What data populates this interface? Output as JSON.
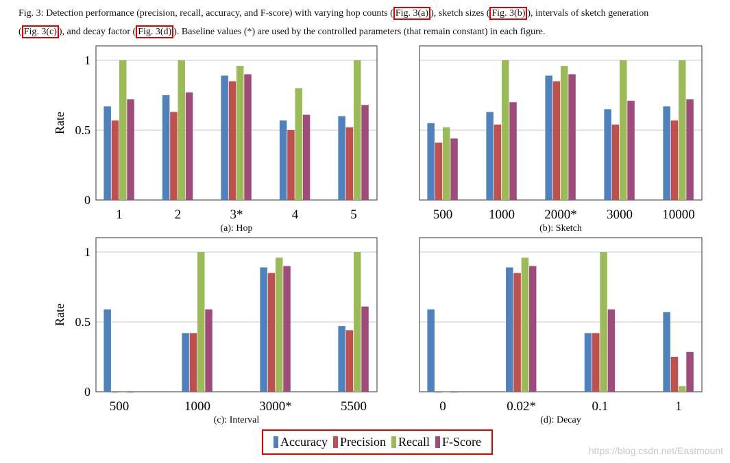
{
  "caption": {
    "l1a": "Fig. 3: Detection performance (precision, recall, accuracy, and F-score) with varying hop counts (",
    "ref_a": "Fig. 3(a)",
    "l1b": "), sketch sizes (",
    "ref_b": "Fig. 3(b)",
    "l1c": "), intervals of sketch generation",
    "l2a": "(",
    "ref_c": "Fig. 3(c)",
    "l2b": "), and decay factor (",
    "ref_d": "Fig. 3(d)",
    "l2c": "). Baseline values (*) are used by the controlled parameters (that remain constant) in each figure."
  },
  "legend": {
    "items": [
      {
        "label": "Accuracy",
        "color": "#4f81bd"
      },
      {
        "label": "Precision",
        "color": "#c0504d"
      },
      {
        "label": "Recall",
        "color": "#9bbb59"
      },
      {
        "label": "F-Score",
        "color": "#9f4c7c"
      }
    ]
  },
  "watermark": "https://blog.csdn.net/Eastmount",
  "chart_data": [
    {
      "type": "bar",
      "title": "(a): Hop",
      "ylabel": "Rate",
      "ylim": [
        0,
        1
      ],
      "yticks": [
        "0",
        "0.5",
        "1"
      ],
      "categories": [
        "1",
        "2",
        "3*",
        "4",
        "5"
      ],
      "series": [
        {
          "name": "Accuracy",
          "values": [
            0.67,
            0.75,
            0.89,
            0.57,
            0.6
          ]
        },
        {
          "name": "Precision",
          "values": [
            0.57,
            0.63,
            0.85,
            0.5,
            0.52
          ]
        },
        {
          "name": "Recall",
          "values": [
            1.0,
            1.0,
            0.96,
            0.8,
            1.0
          ]
        },
        {
          "name": "F-Score",
          "values": [
            0.72,
            0.77,
            0.9,
            0.61,
            0.68
          ]
        }
      ]
    },
    {
      "type": "bar",
      "title": "(b): Sketch",
      "ylabel": "",
      "ylim": [
        0,
        1
      ],
      "yticks": [],
      "categories": [
        "500",
        "1000",
        "2000*",
        "3000",
        "10000"
      ],
      "series": [
        {
          "name": "Accuracy",
          "values": [
            0.55,
            0.63,
            0.89,
            0.65,
            0.67
          ]
        },
        {
          "name": "Precision",
          "values": [
            0.41,
            0.54,
            0.85,
            0.54,
            0.57
          ]
        },
        {
          "name": "Recall",
          "values": [
            0.52,
            1.0,
            0.96,
            1.0,
            1.0
          ]
        },
        {
          "name": "F-Score",
          "values": [
            0.44,
            0.7,
            0.9,
            0.71,
            0.72
          ]
        }
      ]
    },
    {
      "type": "bar",
      "title": "(c): Interval",
      "ylabel": "Rate",
      "ylim": [
        0,
        1
      ],
      "yticks": [
        "0",
        "0.5",
        "1"
      ],
      "categories": [
        "500",
        "1000",
        "3000*",
        "5500"
      ],
      "series": [
        {
          "name": "Accuracy",
          "values": [
            0.59,
            0.42,
            0.89,
            0.47
          ]
        },
        {
          "name": "Precision",
          "values": [
            0.0,
            0.42,
            0.85,
            0.44
          ]
        },
        {
          "name": "Recall",
          "values": [
            0.0,
            1.0,
            0.96,
            1.0
          ]
        },
        {
          "name": "F-Score",
          "values": [
            0.0,
            0.59,
            0.9,
            0.61
          ]
        }
      ]
    },
    {
      "type": "bar",
      "title": "(d): Decay",
      "ylabel": "",
      "ylim": [
        0,
        1
      ],
      "yticks": [],
      "categories": [
        "0",
        "0.02*",
        "0.1",
        "1"
      ],
      "series": [
        {
          "name": "Accuracy",
          "values": [
            0.59,
            0.89,
            0.42,
            0.57
          ]
        },
        {
          "name": "Precision",
          "values": [
            0.0,
            0.85,
            0.42,
            0.25
          ]
        },
        {
          "name": "Recall",
          "values": [
            0.0,
            0.96,
            1.0,
            0.04
          ]
        },
        {
          "name": "F-Score",
          "values": [
            0.0,
            0.9,
            0.59,
            0.285
          ]
        }
      ]
    }
  ]
}
